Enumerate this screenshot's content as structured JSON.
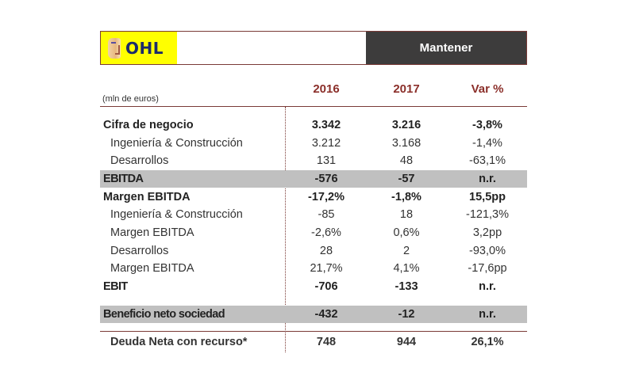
{
  "header": {
    "logo_text": "OHL",
    "rating": "Mantener"
  },
  "table": {
    "units": "(mln de euros)",
    "columns": [
      "2016",
      "2017",
      "Var %"
    ],
    "rows": [
      {
        "label": "Cifra de negocio",
        "v2016": "3.342",
        "v2017": "3.216",
        "var": "-3,8%",
        "style": "bold"
      },
      {
        "label": "Ingeniería  & Construcción",
        "v2016": "3.212",
        "v2017": "3.168",
        "var": "-1,4%",
        "style": "sub"
      },
      {
        "label": "Desarrollos",
        "v2016": "131",
        "v2017": "48",
        "var": "-63,1%",
        "style": "sub"
      },
      {
        "label": "EBITDA",
        "v2016": "-576",
        "v2017": "-57",
        "var": "n.r.",
        "style": "bold-shaded"
      },
      {
        "label": "Margen EBITDA",
        "v2016": "-17,2%",
        "v2017": "-1,8%",
        "var": "15,5pp",
        "style": "bold"
      },
      {
        "label": "Ingeniería  & Construcción",
        "v2016": "-85",
        "v2017": "18",
        "var": "-121,3%",
        "style": "sub"
      },
      {
        "label": "Margen EBITDA",
        "v2016": "-2,6%",
        "v2017": "0,6%",
        "var": "3,2pp",
        "style": "sub"
      },
      {
        "label": "Desarrollos",
        "v2016": "28",
        "v2017": "2",
        "var": "-93,0%",
        "style": "sub"
      },
      {
        "label": "Margen EBITDA",
        "v2016": "21,7%",
        "v2017": "4,1%",
        "var": "-17,6pp",
        "style": "sub"
      },
      {
        "label": "EBIT",
        "v2016": "-706",
        "v2017": "-133",
        "var": "n.r.",
        "style": "bold"
      },
      {
        "label": "Beneficio neto sociedad",
        "v2016": "-432",
        "v2017": "-12",
        "var": "n.r.",
        "style": "bold-shaded"
      },
      {
        "label": "Deuda Neta con recurso*",
        "v2016": "748",
        "v2017": "944",
        "var": "26,1%",
        "style": "bold"
      }
    ]
  },
  "colors": {
    "accent": "#8b2f2a",
    "rating_bg": "#3d3c3c",
    "shade": "#c0c0c0",
    "logo_bg": "#ffff00",
    "logo_text": "#1b2a6b"
  }
}
